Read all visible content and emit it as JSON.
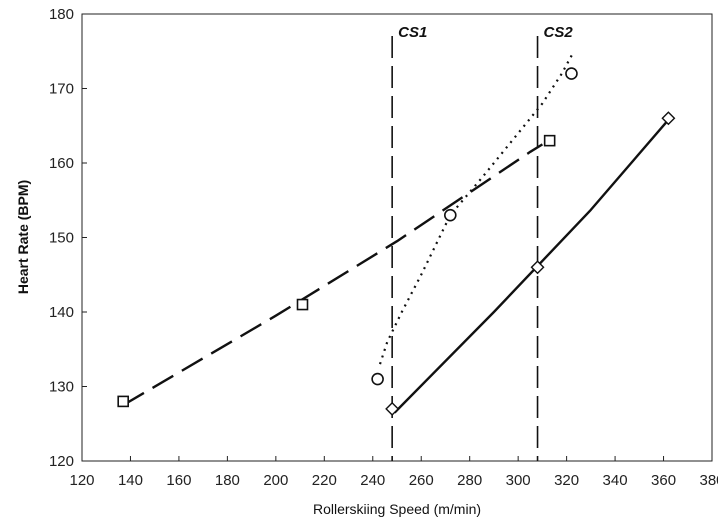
{
  "chart_data": {
    "type": "scatter",
    "title": "",
    "xlabel": "Rollerskiing Speed (m/min)",
    "ylabel": "Heart Rate (BPM)",
    "xlim": [
      120,
      380
    ],
    "ylim": [
      120,
      180
    ],
    "xticks": [
      120,
      140,
      160,
      180,
      200,
      220,
      240,
      260,
      280,
      300,
      320,
      340,
      360,
      380
    ],
    "yticks": [
      120,
      130,
      140,
      150,
      160,
      170,
      180
    ],
    "grid": false,
    "series": [
      {
        "marker": "square",
        "line_style": "long-dash",
        "points": [
          [
            137,
            128
          ],
          [
            211,
            141
          ],
          [
            313,
            163
          ]
        ],
        "fit": [
          [
            137,
            127.5
          ],
          [
            200,
            139.5
          ],
          [
            250,
            149.5
          ],
          [
            305,
            161.5
          ],
          [
            310,
            162.5
          ]
        ]
      },
      {
        "marker": "circle",
        "line_style": "dotted",
        "points": [
          [
            242,
            131
          ],
          [
            272,
            153
          ],
          [
            322,
            172
          ]
        ],
        "fit": [
          [
            243,
            133
          ],
          [
            246,
            136
          ],
          [
            252,
            140
          ],
          [
            260,
            145
          ],
          [
            272,
            153
          ],
          [
            285,
            158
          ],
          [
            300,
            164
          ],
          [
            310,
            168
          ],
          [
            318,
            172
          ],
          [
            323,
            175
          ]
        ]
      },
      {
        "marker": "diamond",
        "line_style": "solid",
        "points": [
          [
            248,
            127
          ],
          [
            308,
            146
          ],
          [
            362,
            166
          ]
        ],
        "fit": [
          [
            249,
            126.5
          ],
          [
            290,
            140
          ],
          [
            330,
            153.7
          ],
          [
            362,
            165.8
          ]
        ]
      }
    ],
    "threshold_lines": [
      {
        "label": "CS1",
        "x": 248
      },
      {
        "label": "CS2",
        "x": 308
      }
    ]
  }
}
